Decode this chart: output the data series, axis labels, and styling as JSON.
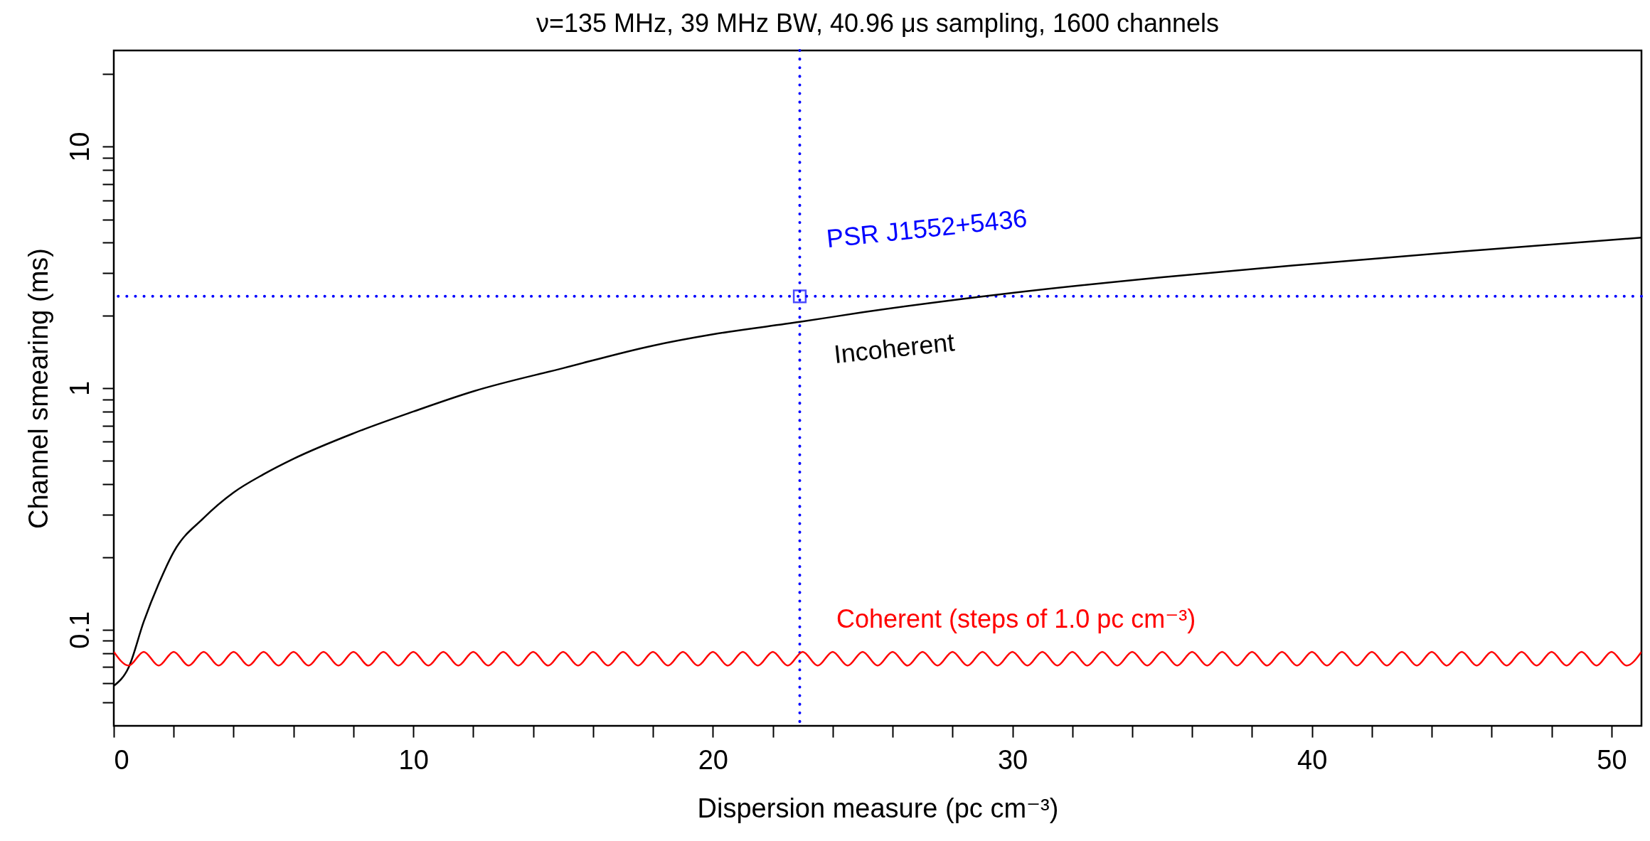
{
  "chart_data": {
    "type": "line",
    "title": "ν=135 MHz, 39 MHz BW, 40.96 μs sampling, 1600 channels",
    "xlabel": "Dispersion measure (pc cm⁻³)",
    "ylabel": "Channel smearing (ms)",
    "xlim": [
      0,
      51
    ],
    "ylim": [
      0.04,
      25
    ],
    "log": "y",
    "xticks": [
      0,
      {
        "value": 2,
        "label": null
      },
      {
        "value": 4,
        "label": null
      },
      {
        "value": 6,
        "label": null
      },
      {
        "value": 8,
        "label": null
      },
      10,
      {
        "value": 12,
        "label": null
      },
      {
        "value": 14,
        "label": null
      },
      {
        "value": 16,
        "label": null
      },
      {
        "value": 18,
        "label": null
      },
      20,
      {
        "value": 22,
        "label": null
      },
      {
        "value": 24,
        "label": null
      },
      {
        "value": 26,
        "label": null
      },
      {
        "value": 28,
        "label": null
      },
      30,
      {
        "value": 32,
        "label": null
      },
      {
        "value": 34,
        "label": null
      },
      {
        "value": 36,
        "label": null
      },
      {
        "value": 38,
        "label": null
      },
      40,
      {
        "value": 42,
        "label": null
      },
      {
        "value": 44,
        "label": null
      },
      {
        "value": 46,
        "label": null
      },
      {
        "value": 48,
        "label": null
      },
      50
    ],
    "yticks": [
      {
        "value": 0.05,
        "label": null
      },
      {
        "value": 0.06,
        "label": null
      },
      {
        "value": 0.07,
        "label": null
      },
      {
        "value": 0.08,
        "label": null
      },
      {
        "value": 0.09,
        "label": null
      },
      0.1,
      {
        "value": 0.2,
        "label": null
      },
      {
        "value": 0.3,
        "label": null
      },
      {
        "value": 0.4,
        "label": null
      },
      {
        "value": 0.5,
        "label": null
      },
      {
        "value": 0.6,
        "label": null
      },
      {
        "value": 0.7,
        "label": null
      },
      {
        "value": 0.8,
        "label": null
      },
      {
        "value": 0.9,
        "label": null
      },
      1,
      {
        "value": 2,
        "label": null
      },
      {
        "value": 3,
        "label": null
      },
      {
        "value": 4,
        "label": null
      },
      {
        "value": 5,
        "label": null
      },
      {
        "value": 6,
        "label": null
      },
      {
        "value": 7,
        "label": null
      },
      {
        "value": 8,
        "label": null
      },
      {
        "value": 9,
        "label": null
      },
      10,
      {
        "value": 20,
        "label": null
      }
    ],
    "grid": false,
    "marker": "none",
    "series": [
      {
        "name": "Incoherent",
        "type": "line",
        "color": "#000000",
        "x": [
          0,
          0.5,
          1,
          1.5,
          2,
          3,
          4,
          5,
          6,
          8,
          10,
          12,
          15,
          18,
          20,
          22.9,
          25,
          30,
          35,
          40,
          45,
          51
        ],
        "values": [
          0.0585,
          0.07,
          0.108,
          0.155,
          0.21,
          0.29,
          0.37,
          0.44,
          0.51,
          0.65,
          0.8,
          0.97,
          1.21,
          1.5,
          1.67,
          1.88,
          2.06,
          2.48,
          2.88,
          3.27,
          3.68,
          4.2
        ]
      },
      {
        "name": "Coherent (steps of 1.0 pc cm⁻³)",
        "type": "line",
        "color": "#ff0000",
        "x": [
          0,
          0.5,
          1,
          1.5,
          2,
          2.5,
          3,
          3.5,
          4,
          4.5,
          5,
          5.5,
          6,
          6.5,
          7,
          7.5,
          8,
          8.5,
          9,
          9.5,
          10,
          10.5,
          11,
          11.5,
          12,
          12.5,
          13,
          13.5,
          14,
          14.5,
          15,
          15.5,
          16,
          16.5,
          17,
          17.5,
          18,
          18.5,
          19,
          19.5,
          20,
          20.5,
          21,
          21.5,
          22,
          22.5,
          23,
          23.5,
          24,
          24.5,
          25,
          25.5,
          26,
          26.5,
          27,
          27.5,
          28,
          28.5,
          29,
          29.5,
          30,
          30.5,
          31,
          31.5,
          32,
          32.5,
          33,
          33.5,
          34,
          34.5,
          35,
          35.5,
          36,
          36.5,
          37,
          37.5,
          38,
          38.5,
          39,
          39.5,
          40,
          40.5,
          41,
          41.5,
          42,
          42.5,
          43,
          43.5,
          44,
          44.5,
          45,
          45.5,
          46,
          46.5,
          47,
          47.5,
          48,
          48.5,
          49,
          49.5,
          50,
          50.5,
          51
        ],
        "values": [
          0.081,
          0.071,
          0.081,
          0.071,
          0.081,
          0.071,
          0.081,
          0.071,
          0.081,
          0.071,
          0.081,
          0.071,
          0.081,
          0.071,
          0.081,
          0.071,
          0.081,
          0.071,
          0.081,
          0.071,
          0.081,
          0.071,
          0.081,
          0.071,
          0.081,
          0.071,
          0.081,
          0.071,
          0.081,
          0.071,
          0.081,
          0.071,
          0.081,
          0.071,
          0.081,
          0.071,
          0.081,
          0.071,
          0.081,
          0.071,
          0.081,
          0.071,
          0.081,
          0.071,
          0.081,
          0.071,
          0.081,
          0.071,
          0.081,
          0.071,
          0.081,
          0.071,
          0.081,
          0.071,
          0.081,
          0.071,
          0.081,
          0.071,
          0.081,
          0.071,
          0.081,
          0.071,
          0.081,
          0.071,
          0.081,
          0.071,
          0.081,
          0.071,
          0.081,
          0.071,
          0.081,
          0.071,
          0.081,
          0.071,
          0.081,
          0.071,
          0.081,
          0.071,
          0.081,
          0.071,
          0.081,
          0.071,
          0.081,
          0.071,
          0.081,
          0.071,
          0.081,
          0.071,
          0.081,
          0.071,
          0.081,
          0.071,
          0.081,
          0.071,
          0.081,
          0.071,
          0.081,
          0.071,
          0.081,
          0.071,
          0.081,
          0.071,
          0.081
        ]
      },
      {
        "type": "scatter",
        "marker": "square",
        "color": "#0000ff",
        "x": [
          22.9
        ],
        "values": [
          2.4
        ]
      }
    ],
    "ref_lines": [
      {
        "axis": "x",
        "value": 22.9,
        "color": "#0000ff",
        "line_style": "dotted"
      },
      {
        "axis": "y",
        "value": 2.4,
        "color": "#0000ff",
        "line_style": "dotted"
      }
    ],
    "annotations": [
      {
        "text": "PSR J1552+5436",
        "x": 22.9,
        "y": 2.4
      }
    ]
  }
}
